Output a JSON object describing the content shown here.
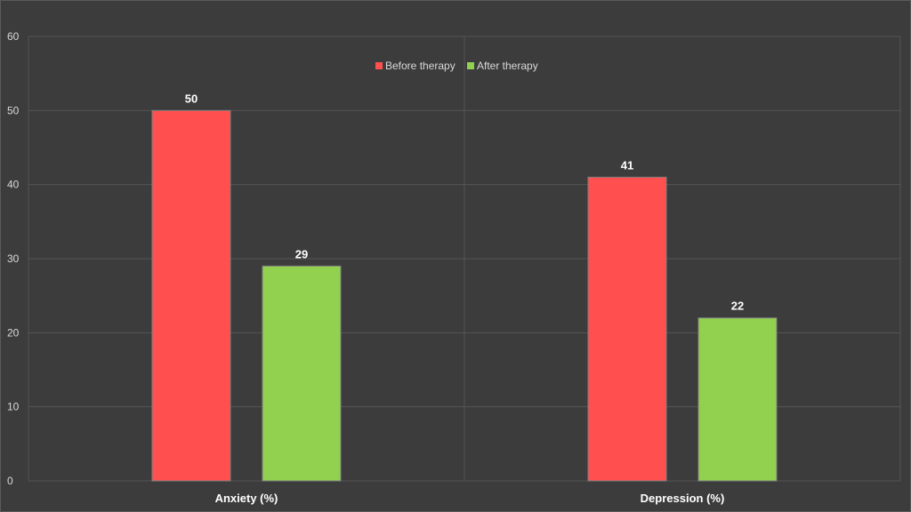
{
  "chart_data": {
    "type": "bar",
    "categories": [
      "Anxiety (%)",
      "Depression (%)"
    ],
    "series": [
      {
        "name": "Before therapy",
        "values": [
          50,
          41
        ],
        "color": "#ff4f4f"
      },
      {
        "name": "After therapy",
        "values": [
          29,
          22
        ],
        "color": "#92d050"
      }
    ],
    "ylim": [
      0,
      60
    ],
    "yticks": [
      0,
      10,
      20,
      30,
      40,
      50,
      60
    ],
    "grid": true,
    "legend": "top-center",
    "colors": {
      "background": "#3c3c3c",
      "grid": "#555555",
      "text": "#d9d9d9",
      "data_label": "#ffffff"
    }
  }
}
